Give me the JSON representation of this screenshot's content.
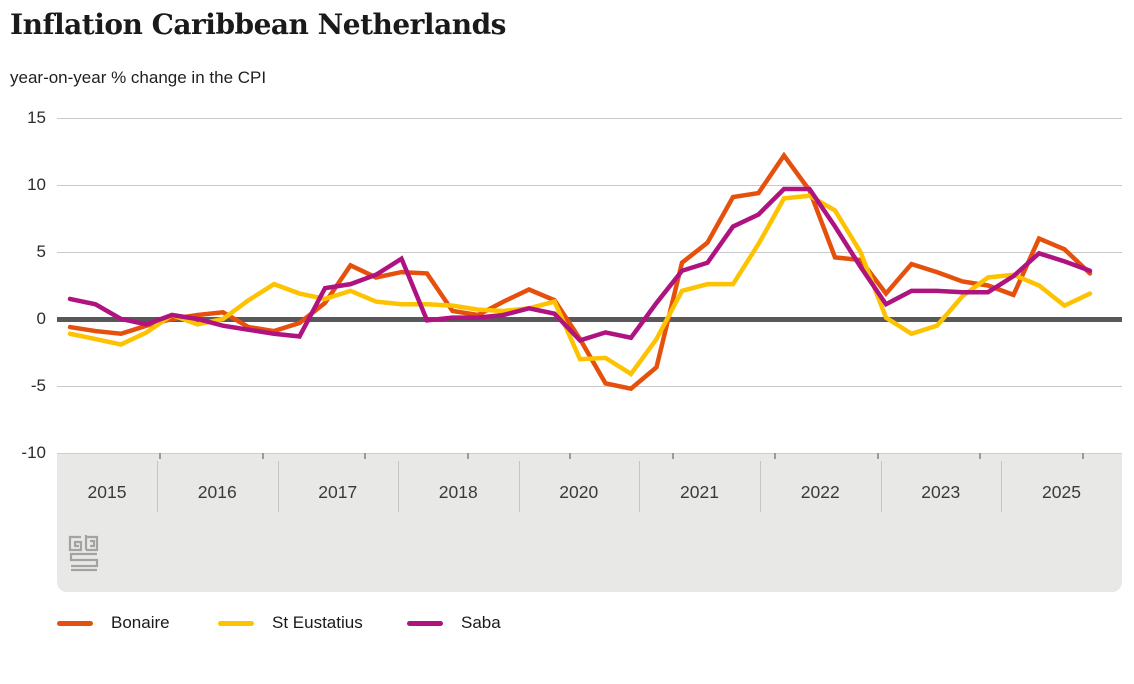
{
  "header": {
    "title": "Inflation Caribbean Netherlands",
    "subtitle": "year-on-year % change in the CPI"
  },
  "logo": {
    "name": "cbs-logo"
  },
  "colors": {
    "bonaire": "#e5510d",
    "st_eustatius": "#fdc300",
    "saba": "#af1380",
    "zero_line": "#58585a",
    "gridline": "#c9c9c9",
    "axis_band": "#e8e8e7",
    "text": "#1a1a1a"
  },
  "chart_data": {
    "type": "line",
    "title": "Inflation Caribbean Netherlands",
    "subtitle": "year-on-year % change in the CPI",
    "ylabel": "year-on-year % change in the CPI",
    "xlabel": "",
    "ylim": [
      -10,
      15
    ],
    "y_ticks": [
      15,
      10,
      5,
      0,
      -5,
      -10
    ],
    "grid": "horizontal",
    "zero_line": true,
    "legend_position": "bottom",
    "x_axis_labels": [
      "2015",
      "2016",
      "2017",
      "2018",
      "2020",
      "2021",
      "2022",
      "2023",
      "2025"
    ],
    "x": [
      "2015 Q1",
      "2015 Q2",
      "2015 Q3",
      "2015 Q4",
      "2016 Q1",
      "2016 Q2",
      "2016 Q3",
      "2016 Q4",
      "2017 Q1",
      "2017 Q2",
      "2017 Q3",
      "2017 Q4",
      "2018 Q1",
      "2018 Q2",
      "2018 Q3",
      "2018 Q4",
      "2019 Q1",
      "2019 Q2",
      "2019 Q3",
      "2019 Q4",
      "2020 Q1",
      "2020 Q2",
      "2020 Q3",
      "2020 Q4",
      "2021 Q1",
      "2021 Q2",
      "2021 Q3",
      "2021 Q4",
      "2022 Q1",
      "2022 Q2",
      "2022 Q3",
      "2022 Q4",
      "2023 Q1",
      "2023 Q2",
      "2023 Q3",
      "2023 Q4",
      "2024 Q1",
      "2024 Q2",
      "2024 Q3",
      "2024 Q4",
      "2025 Q1"
    ],
    "series": [
      {
        "name": "Bonaire",
        "color": "#e5510d",
        "values": [
          -0.6,
          -0.9,
          -1.1,
          -0.5,
          0.0,
          0.3,
          0.5,
          -0.6,
          -0.9,
          -0.3,
          1.2,
          4.0,
          3.1,
          3.5,
          3.4,
          0.6,
          0.3,
          1.3,
          2.2,
          1.4,
          -1.5,
          -4.8,
          -5.2,
          -3.6,
          4.2,
          5.7,
          9.1,
          9.4,
          12.2,
          9.6,
          4.6,
          4.4,
          1.9,
          4.1,
          3.5,
          2.8,
          2.5,
          1.8,
          6.0,
          5.2,
          3.4
        ]
      },
      {
        "name": "St Eustatius",
        "color": "#fdc300",
        "values": [
          -1.1,
          -1.5,
          -1.9,
          -1.0,
          0.3,
          -0.4,
          0.0,
          1.4,
          2.6,
          1.9,
          1.5,
          2.1,
          1.3,
          1.1,
          1.1,
          1.0,
          0.7,
          0.6,
          0.8,
          1.3,
          -3.0,
          -2.9,
          -4.1,
          -1.5,
          2.1,
          2.6,
          2.6,
          5.6,
          9.0,
          9.2,
          8.1,
          5.0,
          0.1,
          -1.1,
          -0.5,
          1.7,
          3.1,
          3.3,
          2.5,
          1.0,
          1.9
        ]
      },
      {
        "name": "Saba",
        "color": "#af1380",
        "values": [
          1.5,
          1.1,
          0.0,
          -0.4,
          0.3,
          0.0,
          -0.5,
          -0.8,
          -1.1,
          -1.3,
          2.3,
          2.6,
          3.3,
          4.5,
          -0.1,
          0.1,
          0.1,
          0.3,
          0.8,
          0.4,
          -1.6,
          -1.0,
          -1.4,
          1.2,
          3.6,
          4.2,
          6.9,
          7.8,
          9.7,
          9.7,
          6.9,
          3.9,
          1.1,
          2.1,
          2.1,
          2.0,
          2.0,
          3.2,
          4.9,
          4.3,
          3.6
        ]
      }
    ]
  },
  "legend": {
    "items": [
      {
        "label": "Bonaire",
        "color": "#e5510d"
      },
      {
        "label": "St Eustatius",
        "color": "#fdc300"
      },
      {
        "label": "Saba",
        "color": "#af1380"
      }
    ]
  }
}
